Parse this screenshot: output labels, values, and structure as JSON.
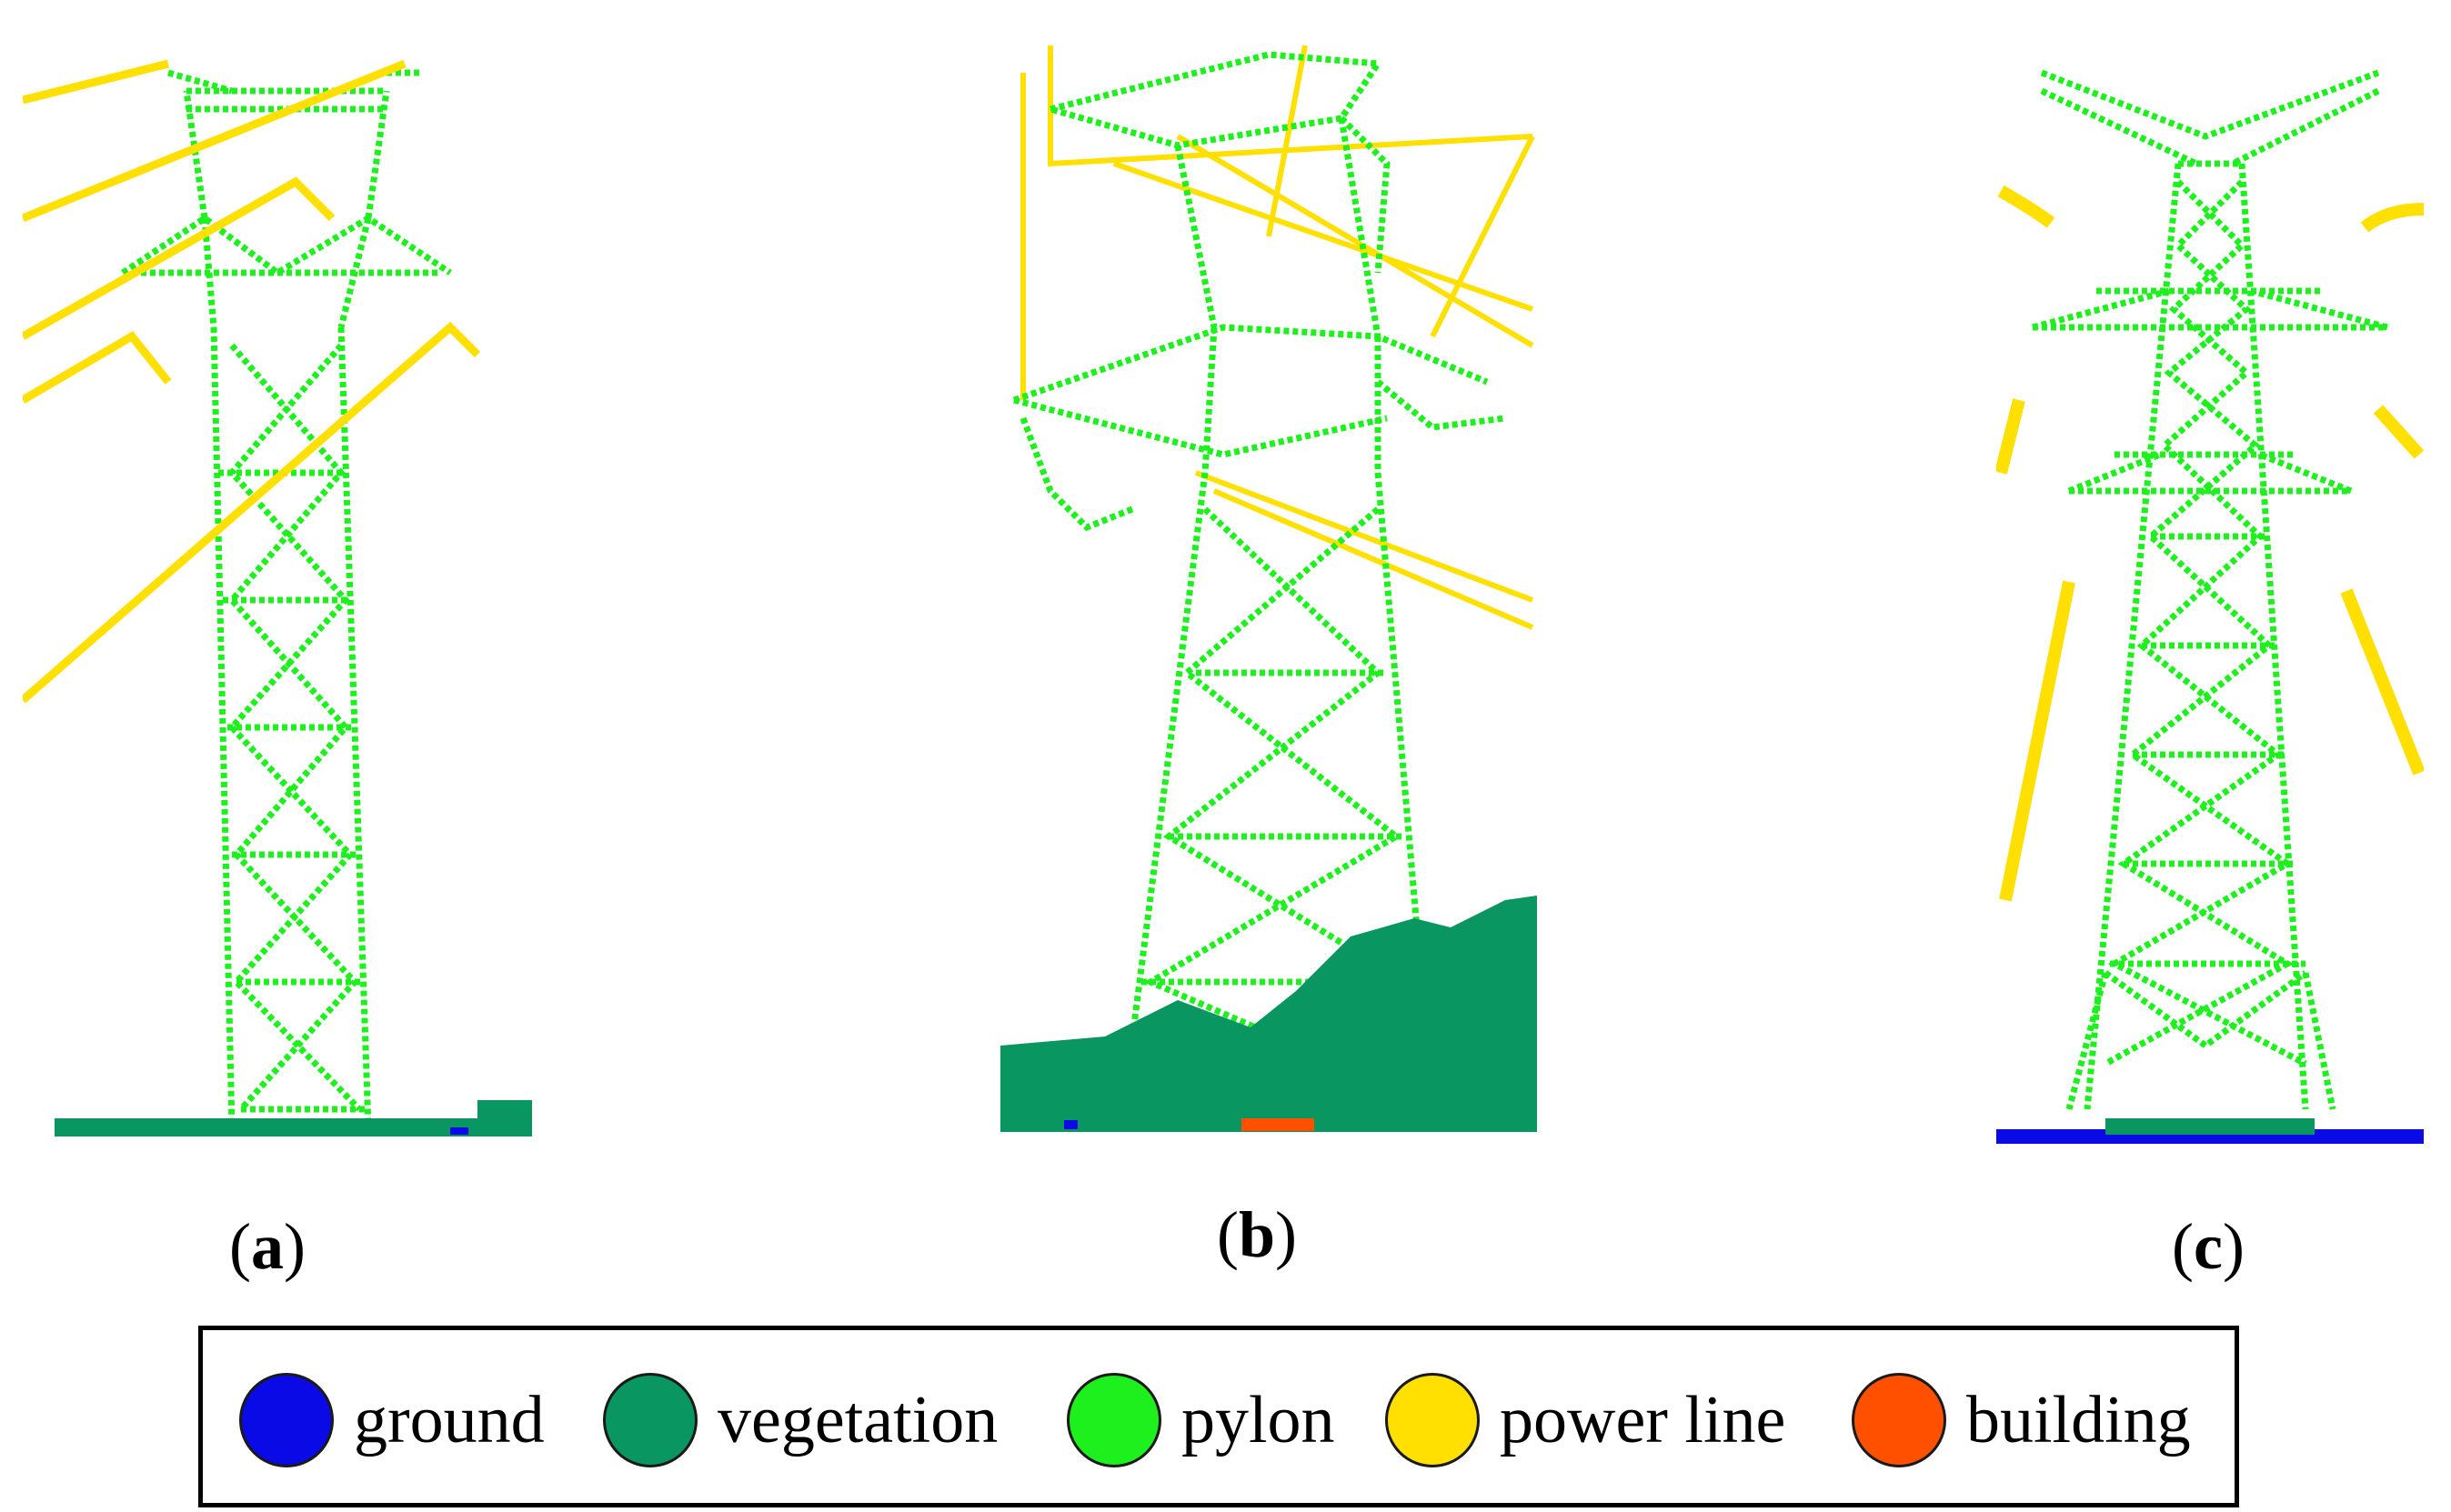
{
  "panels": [
    {
      "id": "a",
      "label": "a"
    },
    {
      "id": "b",
      "label": "b"
    },
    {
      "id": "c",
      "label": "c"
    }
  ],
  "legend": [
    {
      "label": "ground",
      "color": "#0a0ae6"
    },
    {
      "label": "vegetation",
      "color": "#0a9660"
    },
    {
      "label": "pylon",
      "color": "#1ef01e"
    },
    {
      "label": "power line",
      "color": "#ffe000"
    },
    {
      "label": "building",
      "color": "#ff5000"
    }
  ]
}
